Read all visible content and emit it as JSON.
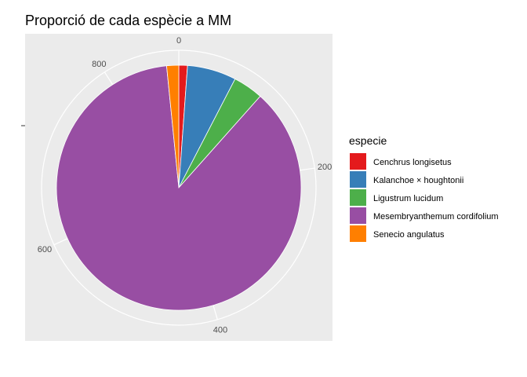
{
  "chart_data": {
    "type": "pie",
    "title": "Proporció de cada espècie a MM",
    "legend_title": "especie",
    "legend_position": "right",
    "axis": {
      "ticks": [
        0,
        200,
        400,
        600,
        800
      ],
      "labels": [
        "0",
        "200",
        "400",
        "600",
        "800"
      ]
    },
    "grid": true,
    "slices": [
      {
        "label": "Cenchrus longisetus",
        "value": 10,
        "color": "#E41A1C"
      },
      {
        "label": "Kalanchoe × houghtonii",
        "value": 57,
        "color": "#377EB8"
      },
      {
        "label": "Ligustrum lucidum",
        "value": 35,
        "color": "#4DAF4A"
      },
      {
        "label": "Mesembryanthemum cordifolium",
        "value": 764,
        "color": "#984EA3"
      },
      {
        "label": "Senecio angulatus",
        "value": 14,
        "color": "#FF7F00"
      }
    ]
  }
}
